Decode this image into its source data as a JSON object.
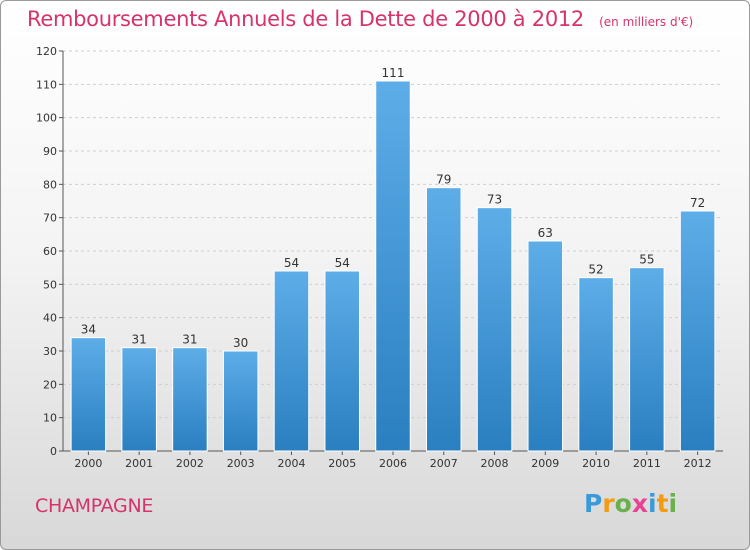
{
  "header": {
    "title": "Remboursements Annuels de la Dette de 2000 à 2012",
    "unit": "(en milliers d'€)"
  },
  "footer": {
    "commune": "CHAMPAGNE"
  },
  "logo": {
    "text": "Proxiti",
    "letters": [
      {
        "char": "P",
        "color": "#3a9ad9"
      },
      {
        "char": "r",
        "color": "#f39c12"
      },
      {
        "char": "o",
        "color": "#6ab04c"
      },
      {
        "char": "x",
        "color": "#e84393"
      },
      {
        "char": "i",
        "color": "#3a9ad9"
      },
      {
        "char": "t",
        "color": "#f39c12"
      },
      {
        "char": "i",
        "color": "#6ab04c"
      }
    ]
  },
  "colors": {
    "title": "#d6336c",
    "bar_top": "#5dade8",
    "bar_bottom": "#2a7fc0"
  },
  "chart_data": {
    "type": "bar",
    "categories": [
      "2000",
      "2001",
      "2002",
      "2003",
      "2004",
      "2005",
      "2006",
      "2007",
      "2008",
      "2009",
      "2010",
      "2011",
      "2012"
    ],
    "values": [
      34,
      31,
      31,
      30,
      54,
      54,
      111,
      79,
      73,
      63,
      52,
      55,
      72
    ],
    "ylim": [
      0,
      120
    ],
    "yticks": [
      0,
      10,
      20,
      30,
      40,
      50,
      60,
      70,
      80,
      90,
      100,
      110,
      120
    ],
    "grid": true,
    "data_labels": true
  }
}
